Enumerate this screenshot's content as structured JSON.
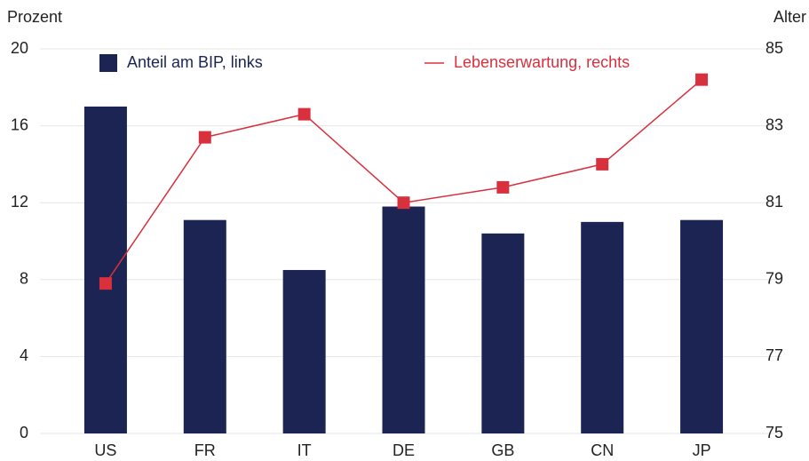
{
  "chart_data": {
    "type": "bar_line",
    "y_axis_label": "Prozent",
    "y2_axis_label": "Alter",
    "categories": [
      "US",
      "FR",
      "IT",
      "DE",
      "GB",
      "CN",
      "JP"
    ],
    "series": [
      {
        "name": "Anteil am BIP, links",
        "color": "#1b2452",
        "type": "bar",
        "axis": "y",
        "values": [
          17.0,
          11.1,
          8.5,
          11.8,
          10.4,
          11.0,
          11.1
        ]
      },
      {
        "name": "Lebenserwartung, rechts",
        "color": "#d9303e",
        "type": "line",
        "axis": "y2",
        "values": [
          78.9,
          82.7,
          83.3,
          81.0,
          81.4,
          82.0,
          84.2
        ]
      }
    ],
    "ylim": [
      0,
      20
    ],
    "yticks": [
      0,
      4,
      8,
      12,
      16,
      20
    ],
    "y2lim": [
      75,
      85
    ],
    "y2ticks": [
      75,
      77,
      79,
      81,
      83,
      85
    ],
    "grid": true
  }
}
